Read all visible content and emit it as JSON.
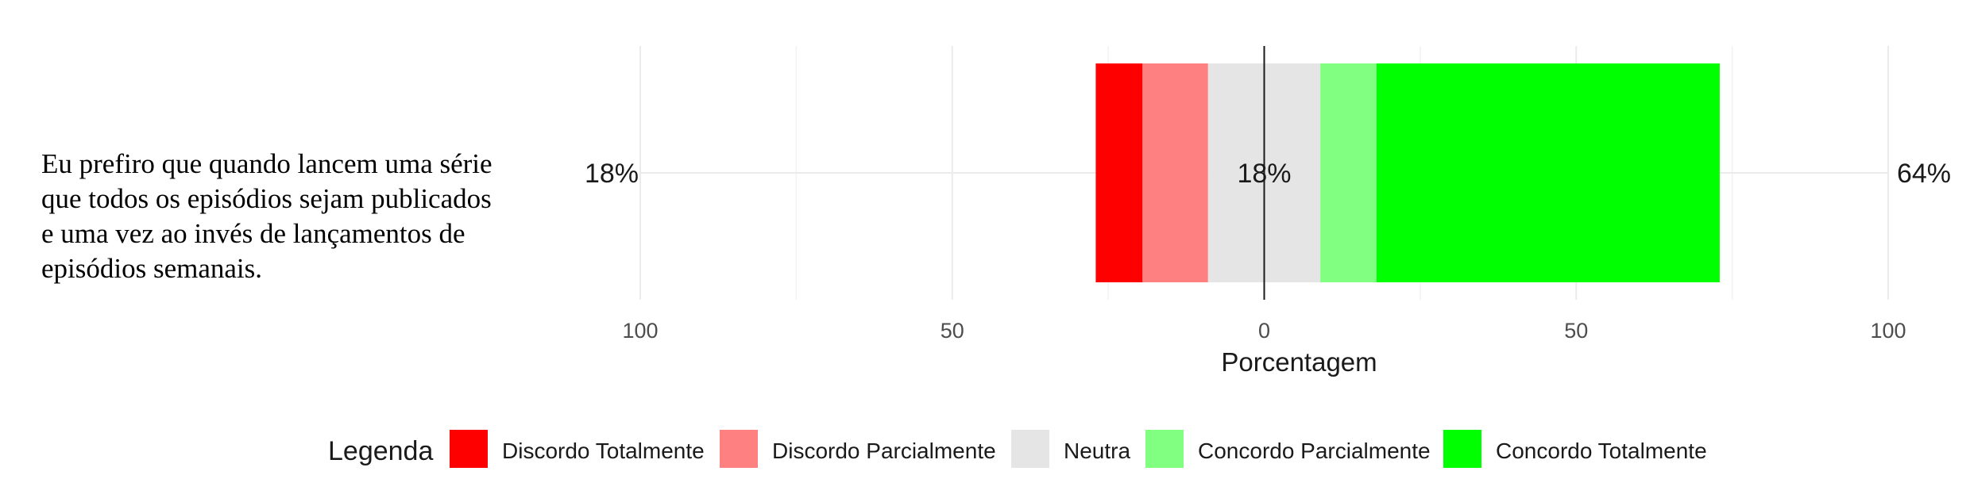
{
  "chart_data": {
    "type": "bar",
    "orientation": "horizontal",
    "stacking": "diverging",
    "categories": [
      "Eu prefiro que quando lancem uma série que todos os episódios sejam publicados e uma vez ao invés de lançamentos de episódios semanais."
    ],
    "category_lines": [
      "Eu prefiro que quando lancem uma série",
      "que todos os episódios sejam publicados",
      "e uma vez ao invés de lançamentos de",
      "episódios semanais."
    ],
    "series": [
      {
        "name": "Discordo Totalmente",
        "color": "#ff0000",
        "values": [
          7.5
        ]
      },
      {
        "name": "Discordo Parcialmente",
        "color": "#ff8080",
        "values": [
          10.5
        ]
      },
      {
        "name": "Neutra",
        "color": "#e5e5e5",
        "values": [
          18
        ]
      },
      {
        "name": "Concordo Parcialmente",
        "color": "#80ff80",
        "values": [
          9
        ]
      },
      {
        "name": "Concordo Totalmente",
        "color": "#00ff00",
        "values": [
          55
        ]
      }
    ],
    "summary_labels": {
      "negative": "18%",
      "neutral": "18%",
      "positive": "64%"
    },
    "xlabel": "Porcentagem",
    "xlim": [
      -100,
      100
    ],
    "xticks": [
      -100,
      -50,
      0,
      50,
      100
    ],
    "xtick_labels": [
      "100",
      "50",
      "0",
      "50",
      "100"
    ],
    "grid": true,
    "legend": {
      "title": "Legenda",
      "position": "bottom"
    }
  }
}
